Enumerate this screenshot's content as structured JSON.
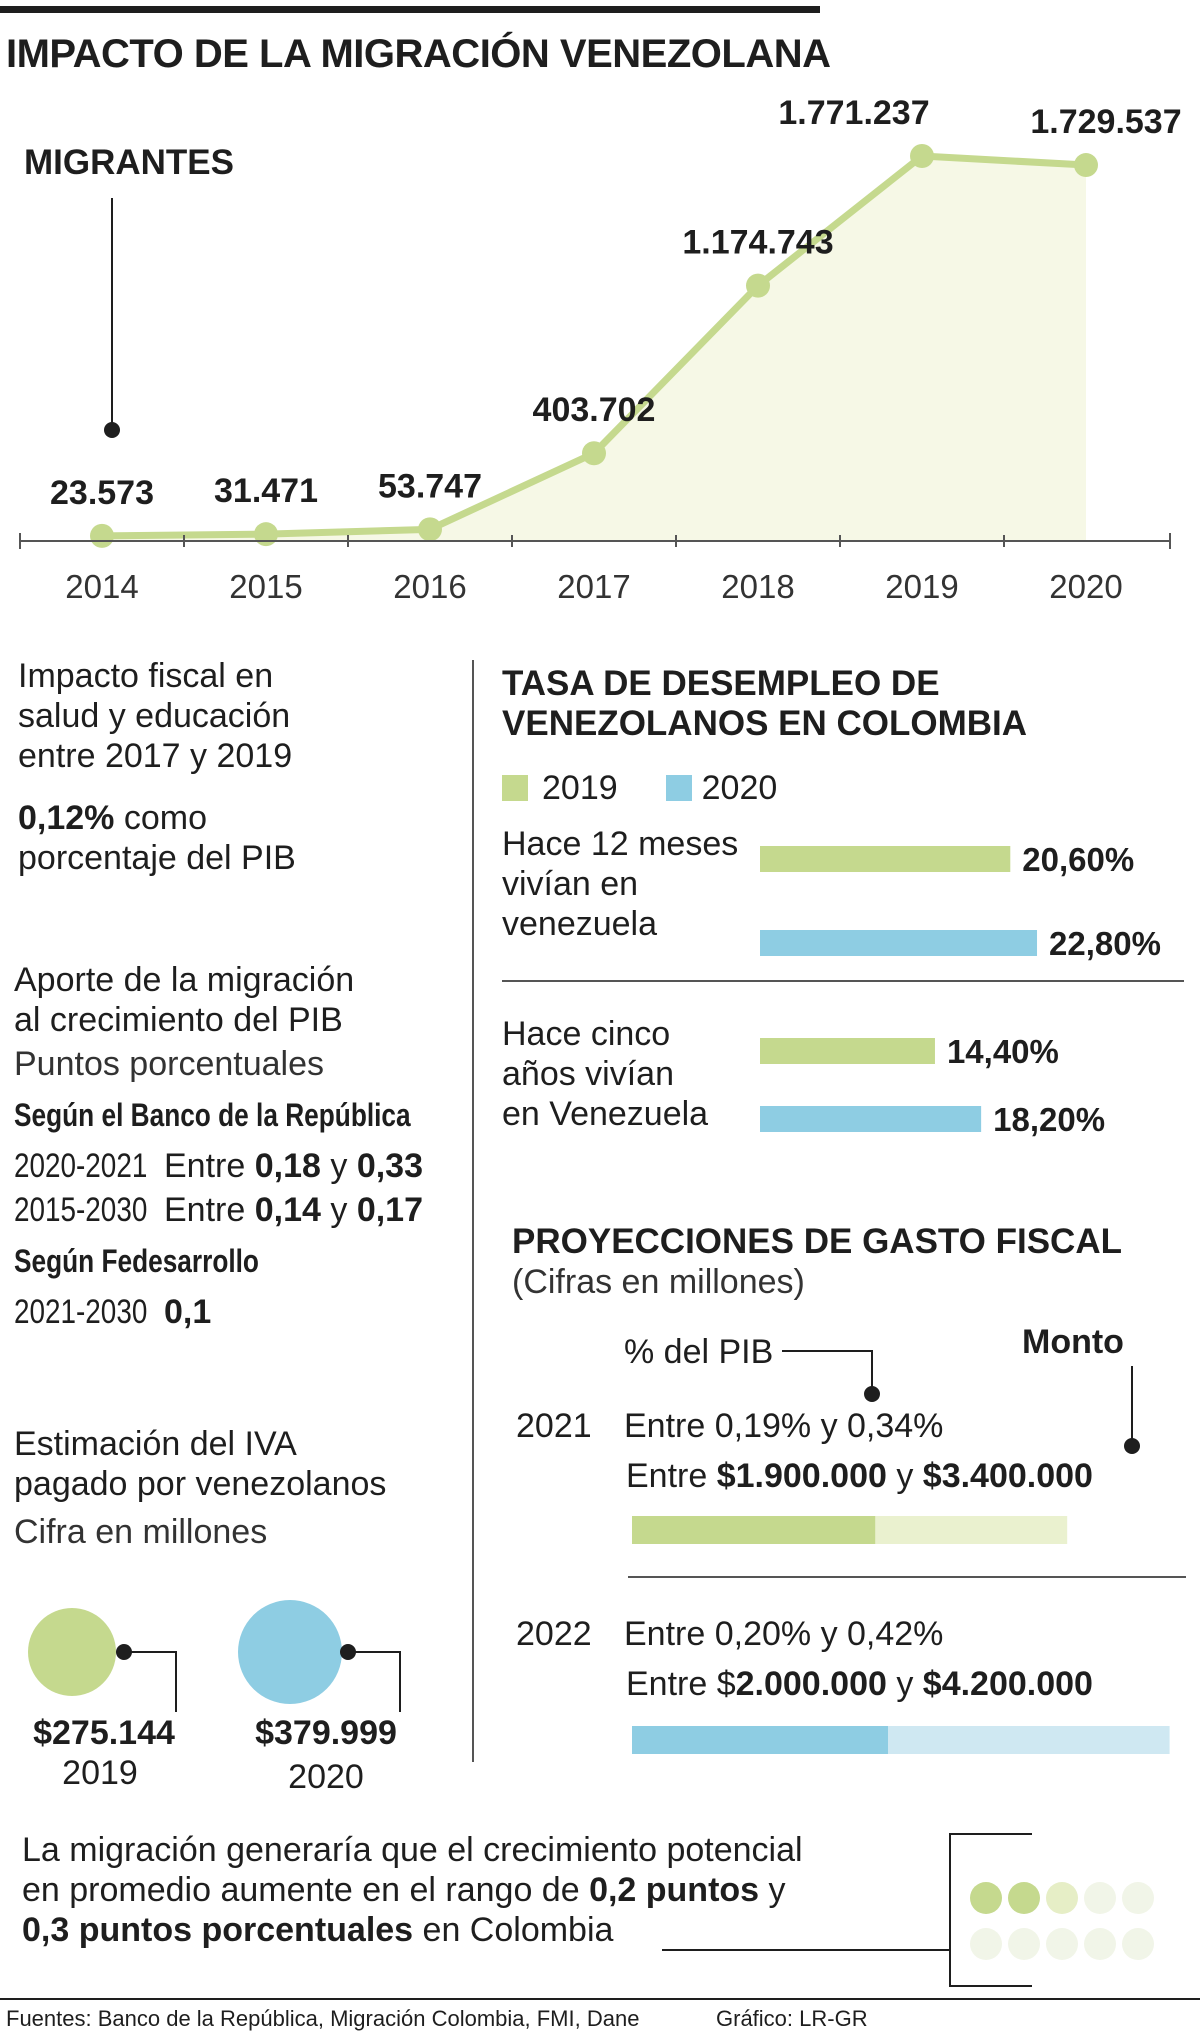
{
  "title": "IMPACTO DE LA MIGRACIÓN VENEZOLANA",
  "chart_data": {
    "type": "area",
    "title": "MIGRANTES",
    "x": [
      "2014",
      "2015",
      "2016",
      "2017",
      "2018",
      "2019",
      "2020"
    ],
    "values": [
      23573,
      31471,
      53747,
      403702,
      1174743,
      1771237,
      1729537
    ],
    "labels": [
      "23.573",
      "31.471",
      "53.747",
      "403.702",
      "1.174.743",
      "1.771.237",
      "1.729.537"
    ],
    "ylim": [
      0,
      1900000
    ],
    "line_color": "#c5d98e",
    "fill_color": "#f6f8e6"
  },
  "fiscal": {
    "title_lines": [
      "Impacto fiscal en",
      "salud y educación",
      "entre 2017 y 2019"
    ],
    "value": "0,12%",
    "value_suffix": " como",
    "value_line2": "porcentaje del PIB"
  },
  "aporte": {
    "title_lines": [
      "Aporte de la migración",
      "al crecimiento del PIB"
    ],
    "subtitle": "Puntos porcentuales",
    "source1": "Según el Banco de la República",
    "rows1": [
      {
        "period": "2020-2021",
        "pre": "Entre ",
        "a": "0,18",
        "mid": " y ",
        "b": "0,33"
      },
      {
        "period": "2015-2030",
        "pre": "Entre ",
        "a": "0,14",
        "mid": " y ",
        "b": "0,17"
      }
    ],
    "source2": "Según Fedesarrollo",
    "row2": {
      "period": "2021-2030",
      "value": "0,1"
    }
  },
  "iva": {
    "title_lines": [
      "Estimación del IVA",
      "pagado por venezolanos"
    ],
    "subtitle": "Cifra en millones",
    "items": [
      {
        "amount": "$275.144",
        "year": "2019",
        "value": 275144,
        "color": "#c5d98e"
      },
      {
        "amount": "$379.999",
        "year": "2020",
        "value": 379999,
        "color": "#8ecde3"
      }
    ]
  },
  "desempleo": {
    "title_lines": [
      "TASA DE DESEMPLEO DE",
      "VENEZOLANOS EN COLOMBIA"
    ],
    "legend": [
      {
        "label": "2019",
        "color": "#c5d98e"
      },
      {
        "label": "2020",
        "color": "#8ecde3"
      }
    ],
    "groups": [
      {
        "label_lines": [
          "Hace 12 meses",
          "vivían en",
          "venezuela"
        ],
        "bars": [
          {
            "label": "20,60%",
            "value": 20.6
          },
          {
            "label": "22,80%",
            "value": 22.8
          }
        ]
      },
      {
        "label_lines": [
          "Hace cinco",
          "años vivían",
          "en Venezuela"
        ],
        "bars": [
          {
            "label": "14,40%",
            "value": 14.4
          },
          {
            "label": "18,20%",
            "value": 18.2
          }
        ]
      }
    ]
  },
  "proyecciones": {
    "title": "PROYECCIONES DE GASTO FISCAL",
    "subtitle": "(Cifras en millones)",
    "pib_label": "% del PIB",
    "monto_label": "Monto",
    "rows": [
      {
        "year": "2021",
        "pib_text": "Entre 0,19% y 0,34%",
        "monto_pre": "Entre ",
        "monto_a": "$1.900.000",
        "monto_mid": " y ",
        "monto_b": "$3.400.000",
        "low": 1900000,
        "high": 3400000,
        "color": "#c5d98e",
        "light": "#eaf1cf"
      },
      {
        "year": "2022",
        "pib_text": "Entre 0,20% y 0,42%",
        "monto_pre": "Entre $",
        "monto_a": "2.000.000",
        "monto_mid": " y ",
        "monto_b": "$4.200.000",
        "low": 2000000,
        "high": 4200000,
        "color": "#8ecde3",
        "light": "#cfe8f2"
      }
    ]
  },
  "conclusion": {
    "line1": "La migración generaría que el crecimiento potencial",
    "line2_pre": "en promedio aumente en el rango de ",
    "line2_bold": "0,2 puntos",
    "line2_post": " y",
    "line3_bold": "0,3 puntos porcentuales",
    "line3_post": " en Colombia",
    "dots_filled": 2,
    "dots_partial": 1,
    "dots_total": 10
  },
  "footer": {
    "sources": "Fuentes: Banco de la República, Migración Colombia, FMI, Dane",
    "credit": "Gráfico: LR-GR"
  }
}
